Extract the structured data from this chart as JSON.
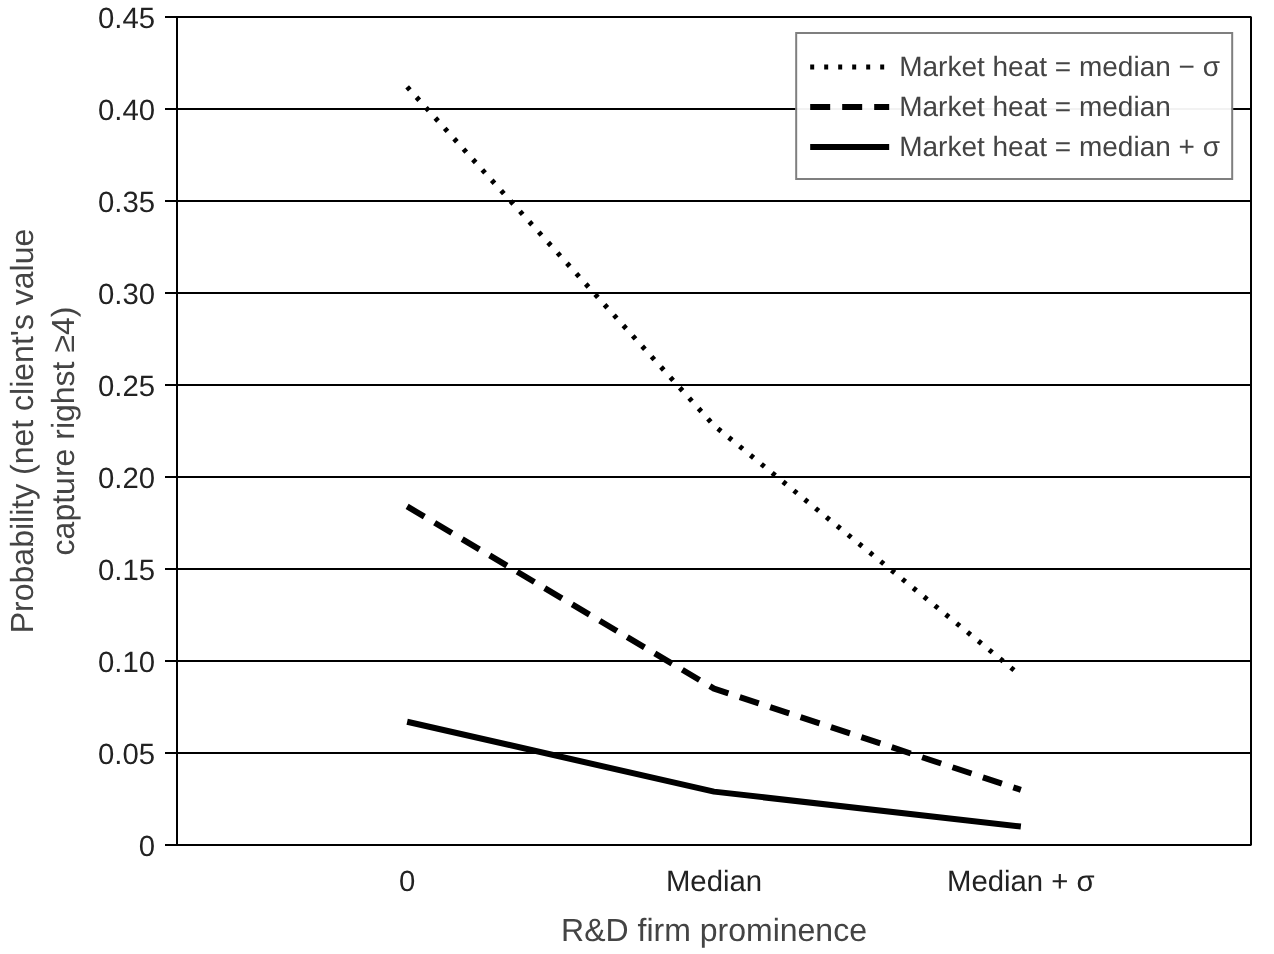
{
  "chart_data": {
    "type": "line",
    "xlabel": "R&D firm prominence",
    "ylabel": "Probability (net client's value\ncapture righst ≥4)",
    "categories": [
      "0",
      "Median",
      "Median + σ"
    ],
    "series": [
      {
        "name": "Market heat = median − σ",
        "color": "#000000",
        "line_style": "dotted",
        "values": [
          0.412,
          0.228,
          0.092
        ]
      },
      {
        "name": "Market heat = median",
        "color": "#000000",
        "line_style": "dashed",
        "values": [
          0.184,
          0.085,
          0.03
        ]
      },
      {
        "name": "Market heat = median + σ",
        "color": "#000000",
        "line_style": "solid",
        "values": [
          0.067,
          0.029,
          0.01
        ]
      }
    ],
    "ylim": [
      0,
      0.45
    ],
    "yticks": [
      0,
      {
        "value": 0.05,
        "label": "0.05"
      },
      {
        "value": 0.1,
        "label": "0.10"
      },
      {
        "value": 0.15,
        "label": "0.15"
      },
      {
        "value": 0.2,
        "label": "0.20"
      },
      {
        "value": 0.25,
        "label": "0.25"
      },
      {
        "value": 0.3,
        "label": "0.30"
      },
      {
        "value": 0.35,
        "label": "0.35"
      },
      {
        "value": 0.4,
        "label": "0.40"
      },
      {
        "value": 0.45,
        "label": "0.45"
      }
    ],
    "grid": "y",
    "legend": "top right",
    "marker": "none"
  }
}
